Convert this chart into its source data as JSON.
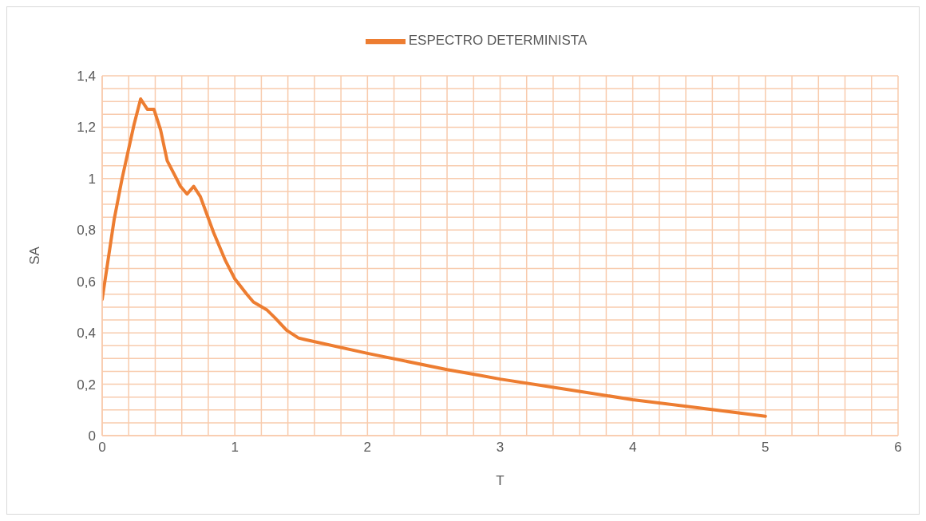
{
  "chart_data": {
    "type": "line",
    "xlabel": "T",
    "ylabel": "SA",
    "series": [
      {
        "name": "ESPECTRO DETERMINISTA",
        "color": "#ed7d31",
        "x": [
          0,
          0.09,
          0.15,
          0.24,
          0.29,
          0.34,
          0.39,
          0.44,
          0.49,
          0.54,
          0.59,
          0.64,
          0.69,
          0.74,
          0.84,
          0.93,
          1.0,
          1.09,
          1.14,
          1.24,
          1.3,
          1.39,
          1.48,
          1.52,
          2.0,
          2.6,
          2.84,
          3.0,
          3.5,
          4.0,
          4.5,
          5.0
        ],
        "values": [
          0.53,
          0.84,
          1.0,
          1.21,
          1.31,
          1.27,
          1.27,
          1.19,
          1.07,
          1.02,
          0.97,
          0.94,
          0.97,
          0.93,
          0.79,
          0.68,
          0.61,
          0.55,
          0.52,
          0.49,
          0.46,
          0.41,
          0.38,
          0.375,
          0.32,
          0.257,
          0.235,
          0.22,
          0.18,
          0.14,
          0.108,
          0.075
        ]
      }
    ],
    "xlim": [
      0,
      6
    ],
    "xticks": [
      0,
      {
        "value": 0.2,
        "label": null
      },
      {
        "value": 0.4,
        "label": null
      },
      {
        "value": 0.6,
        "label": null
      },
      {
        "value": 0.8,
        "label": null
      },
      1,
      {
        "value": 1.2,
        "label": null
      },
      {
        "value": 1.4,
        "label": null
      },
      {
        "value": 1.6,
        "label": null
      },
      {
        "value": 1.8,
        "label": null
      },
      2,
      {
        "value": 2.2,
        "label": null
      },
      {
        "value": 2.4,
        "label": null
      },
      {
        "value": 2.6,
        "label": null
      },
      {
        "value": 2.8,
        "label": null
      },
      3,
      {
        "value": 3.2,
        "label": null
      },
      {
        "value": 3.4,
        "label": null
      },
      {
        "value": 3.6,
        "label": null
      },
      {
        "value": 3.8,
        "label": null
      },
      4,
      {
        "value": 4.2,
        "label": null
      },
      {
        "value": 4.4,
        "label": null
      },
      {
        "value": 4.6,
        "label": null
      },
      {
        "value": 4.8,
        "label": null
      },
      5,
      {
        "value": 5.2,
        "label": null
      },
      {
        "value": 5.4,
        "label": null
      },
      {
        "value": 5.6,
        "label": null
      },
      {
        "value": 5.8,
        "label": null
      },
      6
    ],
    "ylim": [
      0,
      1.4
    ],
    "yticks": [
      0,
      {
        "value": 0.05,
        "label": null
      },
      {
        "value": 0.1,
        "label": null
      },
      {
        "value": 0.15,
        "label": null
      },
      {
        "value": 0.2,
        "label": "0,2"
      },
      {
        "value": 0.25,
        "label": null
      },
      {
        "value": 0.3,
        "label": null
      },
      {
        "value": 0.35,
        "label": null
      },
      {
        "value": 0.4,
        "label": "0,4"
      },
      {
        "value": 0.45,
        "label": null
      },
      {
        "value": 0.5,
        "label": null
      },
      {
        "value": 0.55,
        "label": null
      },
      {
        "value": 0.6,
        "label": "0,6"
      },
      {
        "value": 0.65,
        "label": null
      },
      {
        "value": 0.7,
        "label": null
      },
      {
        "value": 0.75,
        "label": null
      },
      {
        "value": 0.8,
        "label": "0,8"
      },
      {
        "value": 0.85,
        "label": null
      },
      {
        "value": 0.9,
        "label": null
      },
      {
        "value": 0.95,
        "label": null
      },
      1,
      {
        "value": 1.05,
        "label": null
      },
      {
        "value": 1.1,
        "label": null
      },
      {
        "value": 1.15,
        "label": null
      },
      {
        "value": 1.2,
        "label": "1,2"
      },
      {
        "value": 1.25,
        "label": null
      },
      {
        "value": 1.3,
        "label": null
      },
      {
        "value": 1.35,
        "label": null
      },
      {
        "value": 1.4,
        "label": "1,4"
      }
    ],
    "grid": true,
    "legend": "top",
    "marker": "none",
    "line_style": "solid"
  }
}
